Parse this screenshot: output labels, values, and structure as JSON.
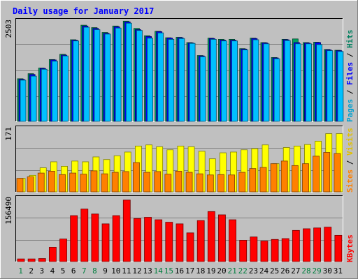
{
  "chart_data": {
    "title": "Daily usage for January 2017",
    "type": "bar",
    "categories": [
      "1",
      "2",
      "3",
      "4",
      "5",
      "6",
      "7",
      "8",
      "9",
      "10",
      "11",
      "12",
      "13",
      "14",
      "15",
      "16",
      "17",
      "18",
      "19",
      "20",
      "21",
      "22",
      "23",
      "24",
      "25",
      "26",
      "27",
      "28",
      "29",
      "30",
      "31"
    ],
    "weekend_days": [
      "1",
      "7",
      "8",
      "14",
      "15",
      "21",
      "22",
      "28",
      "29"
    ],
    "colors": {
      "background": "#c0c0c0",
      "plot_bg": "#c0c0c0",
      "title": "#0000ff",
      "axis_label": "#000000",
      "day_normal": "#000000",
      "day_weekend": "#007f3f",
      "hits": "#009f5f",
      "files": "#0000ff",
      "pages": "#00c0ff",
      "sites": "#ffff00",
      "visits": "#ff8000",
      "kbytes": "#ff0000",
      "hits_text": "#00805f",
      "files_text": "#0000ff",
      "pages_text": "#00a0d0",
      "sites_text": "#ff8000",
      "visits_text": "#e0c000",
      "kbytes_text": "#ff0000"
    },
    "panels": [
      {
        "id": "hits-files-pages",
        "y_max_label": "2503",
        "y_max": 2503,
        "legend": [
          "Pages",
          "Files",
          "Hits"
        ],
        "series": [
          {
            "name": "Hits",
            "values": [
              1055,
              1180,
              1320,
              1530,
              1660,
              2020,
              2380,
              2320,
              2200,
              2360,
              2480,
              2300,
              2120,
              2230,
              2070,
              2080,
              1950,
              1630,
              2060,
              2030,
              2030,
              1800,
              2060,
              1950,
              1580,
              2030,
              2040,
              1950,
              1960,
              1780,
              1760
            ]
          },
          {
            "name": "Files",
            "values": [
              1040,
              1160,
              1310,
              1520,
              1640,
              2010,
              2360,
              2300,
              2180,
              2340,
              2460,
              2270,
              2100,
              2220,
              2060,
              2070,
              1940,
              1620,
              2050,
              2010,
              2010,
              1790,
              2050,
              1940,
              1570,
              2020,
              1950,
              1940,
              1950,
              1770,
              1750
            ]
          },
          {
            "name": "Pages",
            "values": [
              1020,
              1120,
              1290,
              1490,
              1620,
              1990,
              2330,
              2270,
              2160,
              2310,
              2430,
              2250,
              2060,
              2190,
              2030,
              2050,
              1930,
              1600,
              2030,
              1990,
              1990,
              1770,
              2020,
              1920,
              1550,
              2000,
              1920,
              1920,
              1900,
              1750,
              1730
            ]
          }
        ]
      },
      {
        "id": "sites-visits",
        "y_max_label": "171",
        "y_max": 171,
        "legend": [
          "Sites",
          "Visits"
        ],
        "series": [
          {
            "name": "Visits",
            "values": [
              36,
              44,
              64,
              80,
              68,
              82,
              80,
              93,
              86,
              96,
              106,
              122,
              125,
              120,
              112,
              122,
              120,
              108,
              88,
              104,
              106,
              112,
              115,
              125,
              75,
              118,
              122,
              126,
              135,
              155,
              155
            ]
          },
          {
            "name": "Sites",
            "values": [
              36,
              40,
              50,
              55,
              46,
              50,
              47,
              56,
              48,
              52,
              54,
              78,
              52,
              54,
              47,
              55,
              52,
              48,
              45,
              46,
              45,
              52,
              62,
              65,
              75,
              82,
              70,
              75,
              95,
              105,
              102
            ]
          }
        ]
      },
      {
        "id": "kbytes",
        "y_max_label": "156490",
        "y_max": 156490,
        "legend": [
          "KBytes"
        ],
        "series": [
          {
            "name": "KBytes",
            "values": [
              6500,
              6500,
              7500,
              35000,
              55000,
              112000,
              128000,
              116000,
              92000,
              112000,
              150000,
              105000,
              108000,
              102000,
              96000,
              92000,
              70000,
              100000,
              122000,
              114000,
              102000,
              52000,
              60000,
              50000,
              54000,
              56000,
              76000,
              80000,
              82000,
              84000,
              64000
            ]
          }
        ]
      }
    ]
  }
}
